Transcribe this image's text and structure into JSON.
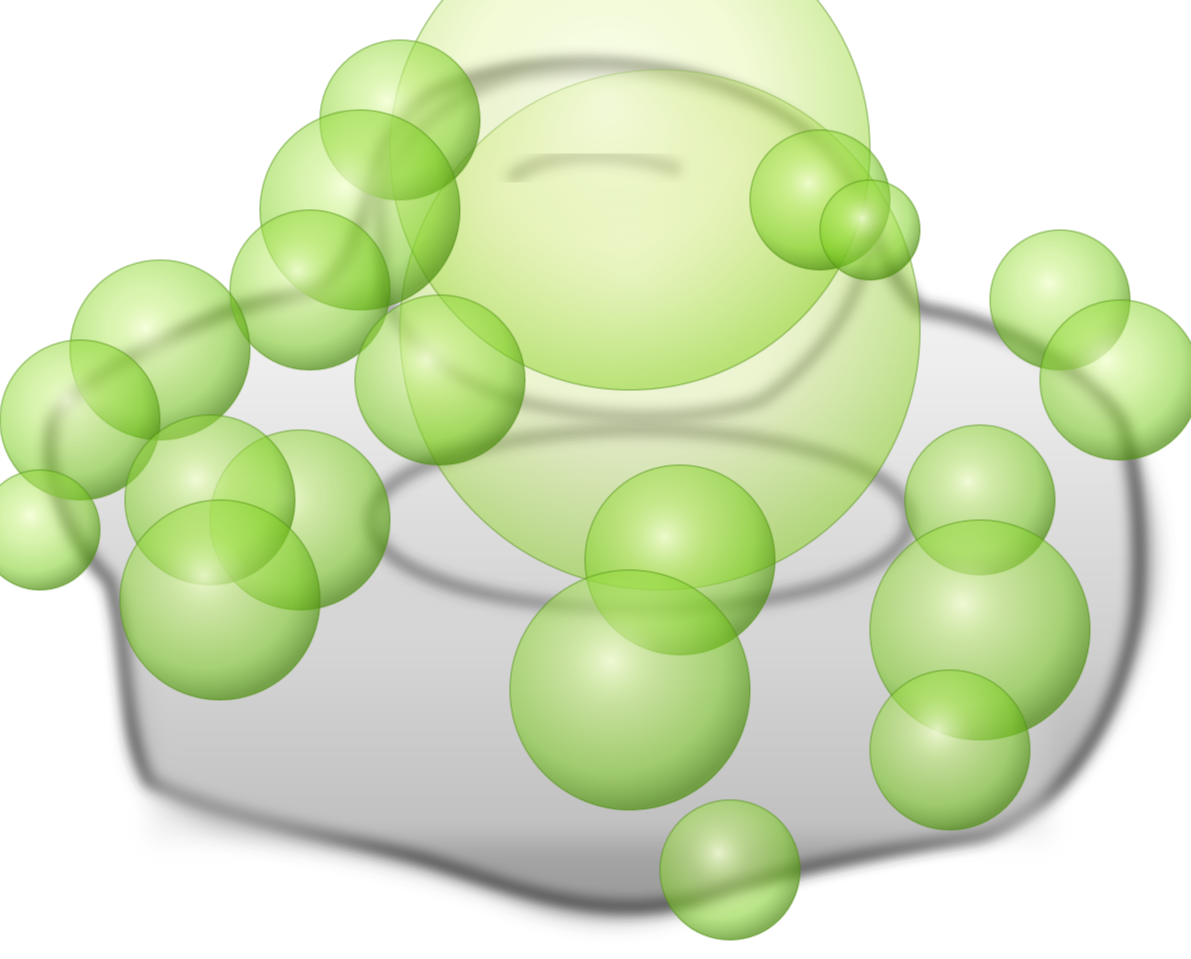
{
  "scene": {
    "subject": "molecular-surface-render",
    "colors": {
      "background": "#ffffff",
      "surface_light": "#f2f2f2",
      "surface_mid": "#bdbdbd",
      "surface_dark": "#3a3a3a",
      "sphere_highlight": "#f4ffd6",
      "sphere_mid": "#a8e05a",
      "sphere_core": "#6fc21c",
      "sphere_edge": "#4f8f10"
    }
  }
}
